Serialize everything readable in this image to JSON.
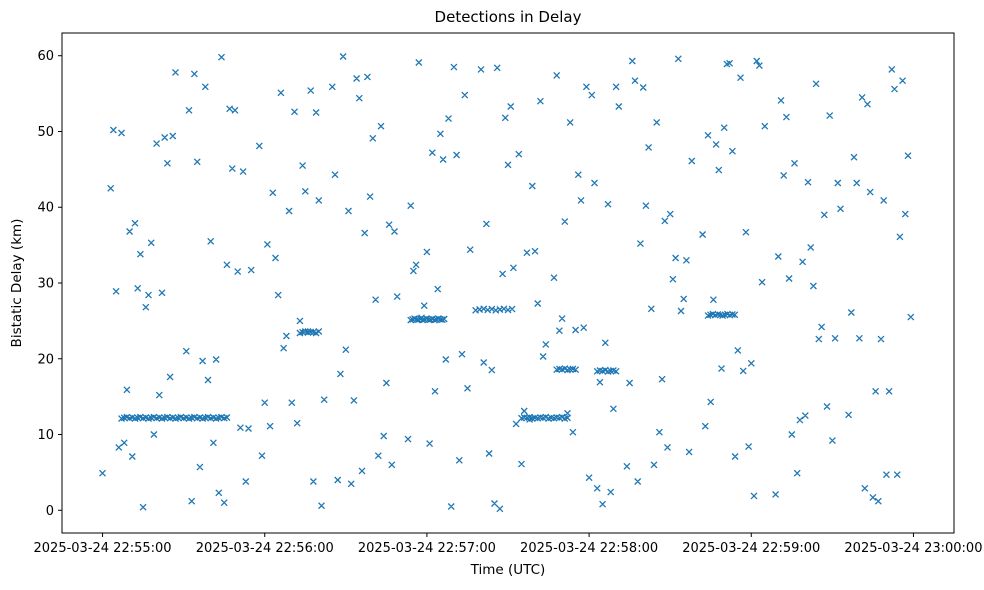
{
  "chart_data": {
    "type": "scatter",
    "title": "Detections in Delay",
    "xlabel": "Time (UTC)",
    "ylabel": "Bistatic Delay (km)",
    "marker": "x",
    "marker_color": "#1f77b4",
    "axes_color": "#000000",
    "background_color": "#ffffff",
    "grid": false,
    "legend": null,
    "x_tick_labels": [
      "2025-03-24 22:55:00",
      "2025-03-24 22:56:00",
      "2025-03-24 22:57:00",
      "2025-03-24 22:58:00",
      "2025-03-24 22:59:00",
      "2025-03-24 23:00:00"
    ],
    "x_tick_seconds": [
      0,
      60,
      120,
      180,
      240,
      300
    ],
    "x_range_seconds": [
      -15,
      315
    ],
    "y_ticks": [
      0,
      10,
      20,
      30,
      40,
      50,
      60
    ],
    "y_range": [
      -3,
      63
    ],
    "points_t_seconds": [
      3,
      194,
      85,
      276,
      167,
      58,
      249,
      140,
      31,
      222,
      113,
      4,
      195,
      86,
      277,
      168,
      59,
      250,
      141,
      32,
      223,
      114,
      5,
      196,
      87,
      278,
      169,
      60,
      251,
      142,
      33,
      224,
      115,
      6,
      197,
      88,
      279,
      170,
      61,
      252,
      143,
      34,
      225,
      116,
      7,
      198,
      89,
      280,
      171,
      62,
      253,
      144,
      35,
      226,
      117,
      8,
      199,
      90,
      281,
      172,
      63,
      254,
      145,
      36,
      227,
      118,
      9,
      200,
      91,
      282,
      173,
      64,
      255,
      146,
      37,
      228,
      119,
      10,
      201,
      92,
      283,
      174,
      65,
      256,
      147,
      38,
      229,
      120,
      11,
      202,
      93,
      284,
      175,
      66,
      257,
      148,
      39,
      230,
      121,
      12,
      203,
      94,
      285,
      176,
      67,
      258,
      149,
      40,
      231,
      122,
      13,
      204,
      95,
      286,
      177,
      68,
      259,
      150,
      41,
      232,
      123,
      14,
      205,
      96,
      287,
      178,
      69,
      260,
      151,
      42,
      233,
      124,
      15,
      206,
      97,
      288,
      179,
      70,
      261,
      152,
      43,
      234,
      125,
      16,
      207,
      98,
      289,
      180,
      71,
      262,
      153,
      44,
      235,
      126,
      17,
      208,
      99,
      290,
      181,
      72,
      263,
      154,
      45,
      236,
      127,
      18,
      209,
      100,
      291,
      182,
      73,
      264,
      155,
      46,
      237,
      128,
      19,
      210,
      101,
      292,
      183,
      74,
      265,
      156,
      47,
      238,
      129,
      20,
      211,
      102,
      293,
      184,
      75,
      266,
      157,
      48,
      239,
      130,
      21,
      212,
      103,
      294,
      185,
      76,
      267,
      158,
      49,
      240,
      131,
      22,
      213,
      104,
      295,
      186,
      77,
      268,
      159,
      50,
      241,
      132,
      23,
      214,
      105,
      296,
      187,
      78,
      269,
      160,
      51,
      242,
      133,
      24,
      215,
      106,
      297,
      188,
      79,
      270,
      161,
      52,
      243,
      134,
      25,
      216,
      107,
      298,
      189,
      80,
      271,
      162,
      53,
      244,
      135,
      26,
      217,
      108,
      299,
      190,
      81,
      272,
      163,
      54,
      245,
      136,
      27,
      218,
      109,
      0,
      191,
      82,
      273,
      164,
      55,
      7,
      8,
      9,
      10,
      11,
      12,
      13,
      14,
      15,
      16,
      17,
      18,
      19,
      20,
      21,
      22,
      23,
      24,
      25,
      26,
      27,
      28,
      29,
      30,
      31,
      32,
      33,
      34,
      35,
      36,
      37,
      38,
      39,
      40,
      41,
      42,
      43,
      44,
      45,
      46,
      114,
      114.7,
      115.4,
      116.2,
      116.9,
      117.6,
      118.4,
      119.1,
      119.8,
      120.6,
      121.3,
      122,
      122.8,
      123.5,
      124.2,
      125,
      125.7,
      126.4,
      138,
      139.5,
      141,
      142.5,
      144,
      145.5,
      147,
      148.5,
      150,
      151.5,
      155,
      156,
      157,
      158,
      159,
      160,
      161,
      162,
      163,
      164,
      165,
      166,
      167,
      168,
      169,
      170,
      171,
      172,
      168,
      169,
      170,
      171,
      172,
      173,
      174,
      175,
      183,
      184,
      185,
      186,
      187,
      188,
      189,
      190,
      224,
      224.9,
      225.8,
      226.7,
      227.6,
      228.5,
      229.4,
      230.3,
      231.2,
      232.1,
      233,
      233.9,
      73,
      74,
      75,
      76,
      77,
      78,
      79,
      80
    ],
    "points_y": [
      42.5,
      5.8,
      55.9,
      12.6,
      30.7,
      48.1,
      2.1,
      58.2,
      21.0,
      36.4,
      9.4,
      50.2,
      16.8,
      44.3,
      26.1,
      57.4,
      7.2,
      33.5,
      19.5,
      52.8,
      11.1,
      40.2,
      28.9,
      59.3,
      4.0,
      46.6,
      23.7,
      14.2,
      54.1,
      37.8,
      1.2,
      49.5,
      31.6,
      8.3,
      56.7,
      18.0,
      43.2,
      25.3,
      35.1,
      44.2,
      7.5,
      57.6,
      14.3,
      32.4,
      49.8,
      3.8,
      59.9,
      22.7,
      38.1,
      11.1,
      51.9,
      18.5,
      46.0,
      27.8,
      59.1,
      8.9,
      35.2,
      21.2,
      54.5,
      12.8,
      41.9,
      30.6,
      0.9,
      5.7,
      48.3,
      25.4,
      15.9,
      55.8,
      39.5,
      2.9,
      51.2,
      33.3,
      10.0,
      58.4,
      19.7,
      44.9,
      27.0,
      36.8,
      40.2,
      3.5,
      53.6,
      10.3,
      28.4,
      45.8,
      0.2,
      55.9,
      18.7,
      34.1,
      7.1,
      47.9,
      14.5,
      42.0,
      23.8,
      55.1,
      4.9,
      31.2,
      17.2,
      50.5,
      8.8,
      37.9,
      26.6,
      57.0,
      1.7,
      44.3,
      21.4,
      11.9,
      51.8,
      35.5,
      58.9,
      47.2,
      29.3,
      6.0,
      54.4,
      15.7,
      40.9,
      23.0,
      32.8,
      45.6,
      8.9,
      59.0,
      15.7,
      33.8,
      51.2,
      5.2,
      1.2,
      24.1,
      39.5,
      12.5,
      53.3,
      19.9,
      47.4,
      29.2,
      0.4,
      10.3,
      36.6,
      22.6,
      55.9,
      14.2,
      43.3,
      32.0,
      2.3,
      7.1,
      49.7,
      26.8,
      17.3,
      57.2,
      40.9,
      4.3,
      52.6,
      34.7,
      11.4,
      59.8,
      21.1,
      46.3,
      28.4,
      38.2,
      41.4,
      4.7,
      54.8,
      11.5,
      29.6,
      47.0,
      1.0,
      57.1,
      19.9,
      35.3,
      8.3,
      49.1,
      15.7,
      43.2,
      25.0,
      56.3,
      6.1,
      32.4,
      18.4,
      51.7,
      10.0,
      39.1,
      27.8,
      58.2,
      2.9,
      45.5,
      22.6,
      13.1,
      53.0,
      36.7,
      0.5,
      48.4,
      30.5,
      7.2,
      55.6,
      16.9,
      42.1,
      24.2,
      34.0,
      45.1,
      8.4,
      58.5,
      15.2,
      33.3,
      50.7,
      4.7,
      0.8,
      23.6,
      39.0,
      12.0,
      52.8,
      19.4,
      46.9,
      28.7,
      59.6,
      9.8,
      36.1,
      22.1,
      55.4,
      13.7,
      42.8,
      31.5,
      1.9,
      6.6,
      49.2,
      26.3,
      16.8,
      56.7,
      40.4,
      3.8,
      52.1,
      34.2,
      10.9,
      59.3,
      20.6,
      45.8,
      27.9,
      37.7,
      39.1,
      2.4,
      52.5,
      9.2,
      27.3,
      44.7,
      58.7,
      54.8,
      17.6,
      33.0,
      6.0,
      46.8,
      13.4,
      40.9,
      22.7,
      54.0,
      3.8,
      30.1,
      16.1,
      49.4,
      7.7,
      36.8,
      25.5,
      55.9,
      0.6,
      43.2,
      20.3,
      10.8,
      50.7,
      34.4,
      57.8,
      46.1,
      28.2,
      4.9,
      53.3,
      14.6,
      39.8,
      21.9,
      31.7,
      12.1,
      12.2,
      12.3,
      12.15,
      12.25,
      12.1,
      12.2,
      12.3,
      12.15,
      12.25,
      12.1,
      12.2,
      12.3,
      12.15,
      12.25,
      12.1,
      12.2,
      12.3,
      12.15,
      12.25,
      12.1,
      12.2,
      12.3,
      12.15,
      12.25,
      12.1,
      12.2,
      12.3,
      12.15,
      12.25,
      12.1,
      12.2,
      12.3,
      12.15,
      12.25,
      12.1,
      12.2,
      12.3,
      12.15,
      12.25,
      25.1,
      25.2,
      25.3,
      25.2,
      25.15,
      25.25,
      25.1,
      25.2,
      25.3,
      25.2,
      25.15,
      25.25,
      25.1,
      25.2,
      25.3,
      25.2,
      25.15,
      25.25,
      26.4,
      26.5,
      26.6,
      26.45,
      26.55,
      26.4,
      26.5,
      26.6,
      26.45,
      26.55,
      12.15,
      12.25,
      12.2,
      12.3,
      12.1,
      12.2,
      12.15,
      12.25,
      12.2,
      12.3,
      12.1,
      12.2,
      12.15,
      12.25,
      12.2,
      12.3,
      12.1,
      12.2,
      18.55,
      18.65,
      18.6,
      18.7,
      18.5,
      18.6,
      18.65,
      18.55,
      18.35,
      18.45,
      18.4,
      18.5,
      18.3,
      18.4,
      18.45,
      18.35,
      25.7,
      25.8,
      25.9,
      25.75,
      25.85,
      25.8,
      25.7,
      25.8,
      25.9,
      25.75,
      25.85,
      25.8,
      23.4,
      23.5,
      23.6,
      23.45,
      23.55,
      23.5,
      23.4,
      23.6
    ]
  }
}
